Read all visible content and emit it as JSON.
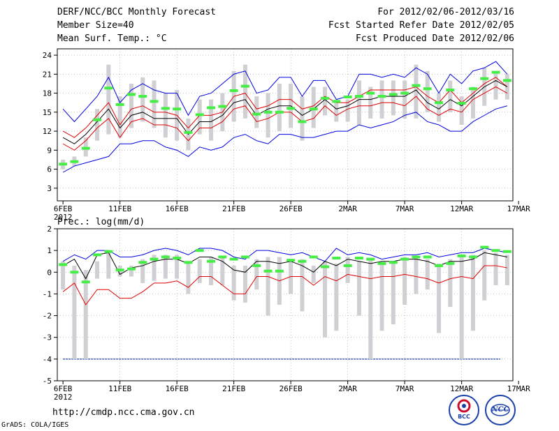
{
  "header": {
    "title": "DERF/NCC/BCC Monthly Forecast",
    "member_size": "Member Size=40",
    "variable": "Mean Surf. Temp.: °C",
    "period": "For 2012/02/06-2012/03/16",
    "fcst_started": "Fcst Started Refer Date 2012/02/05",
    "fcst_produced": "Fcst Produced Date 2012/02/06"
  },
  "footer": {
    "url": "http://cmdp.ncc.cma.gov.cn",
    "grads": "GrADS: COLA/IGES"
  },
  "logos": {
    "bcc_text": "BCC",
    "ncc_text": "NCC"
  },
  "colors": {
    "median": "#000000",
    "quartile": "#dd0000",
    "extreme": "#0000dd",
    "bar": "#d0d0d4",
    "obs": "#44ee44",
    "ref": "#1f3fa8"
  },
  "chart_data": [
    {
      "type": "line",
      "id": "temp",
      "title": "Mean Surf. Temp.: °C",
      "x_labels": [
        "6FEB",
        "11FEB",
        "16FEB",
        "21FEB",
        "26FEB",
        "2MAR",
        "7MAR",
        "12MAR",
        "17MAR"
      ],
      "x_sublabel": "2012",
      "ylim": [
        1,
        25
      ],
      "yticks": [
        3,
        6,
        9,
        12,
        15,
        18,
        21,
        24
      ],
      "xlim": [
        -0.5,
        39.5
      ],
      "series": [
        {
          "name": "max",
          "values": [
            15.5,
            13.5,
            15.5,
            17.5,
            20.5,
            16.5,
            18.5,
            19.5,
            18.5,
            18.0,
            18.0,
            14.5,
            17.5,
            18.0,
            19.5,
            21.0,
            21.5,
            18.0,
            18.5,
            20.5,
            20.5,
            17.5,
            20.0,
            20.0,
            17.0,
            17.5,
            21.0,
            21.0,
            20.5,
            21.0,
            20.5,
            22.0,
            21.0,
            18.0,
            21.0,
            19.5,
            21.5,
            22.0,
            23.0,
            21.0
          ]
        },
        {
          "name": "q3",
          "values": [
            12.0,
            11.0,
            12.5,
            14.5,
            16.5,
            13.0,
            15.5,
            16.0,
            15.0,
            15.0,
            14.5,
            12.5,
            14.5,
            14.5,
            15.0,
            17.5,
            18.0,
            15.5,
            16.0,
            17.0,
            17.0,
            15.5,
            16.0,
            17.5,
            16.5,
            16.5,
            17.5,
            18.5,
            18.5,
            18.5,
            18.5,
            19.0,
            17.5,
            16.5,
            18.5,
            16.5,
            18.0,
            19.5,
            20.5,
            19.0
          ]
        },
        {
          "name": "median",
          "values": [
            11.0,
            10.0,
            11.5,
            13.5,
            15.5,
            12.5,
            14.5,
            15.0,
            14.0,
            14.0,
            14.0,
            11.5,
            13.5,
            13.5,
            14.5,
            16.5,
            17.0,
            14.5,
            15.5,
            16.0,
            16.0,
            14.5,
            15.5,
            17.0,
            15.5,
            16.0,
            17.0,
            17.0,
            17.5,
            17.5,
            17.5,
            18.5,
            16.5,
            15.5,
            17.0,
            16.0,
            17.5,
            19.0,
            20.0,
            19.0
          ]
        },
        {
          "name": "q1",
          "values": [
            10.0,
            9.0,
            10.5,
            12.5,
            14.0,
            11.0,
            13.5,
            14.0,
            13.0,
            13.0,
            12.5,
            10.5,
            12.5,
            12.5,
            13.5,
            15.5,
            16.0,
            13.5,
            14.0,
            15.0,
            15.0,
            13.5,
            14.0,
            16.0,
            14.5,
            15.5,
            16.0,
            16.0,
            16.5,
            16.5,
            16.0,
            17.5,
            15.5,
            14.5,
            15.5,
            15.0,
            17.0,
            18.0,
            19.0,
            18.0
          ]
        },
        {
          "name": "min",
          "values": [
            5.5,
            6.5,
            7.0,
            7.5,
            8.0,
            10.0,
            10.0,
            10.5,
            10.5,
            9.5,
            9.0,
            8.0,
            9.5,
            9.0,
            9.5,
            11.0,
            11.5,
            10.5,
            10.0,
            11.5,
            11.5,
            11.0,
            11.0,
            11.5,
            12.0,
            12.0,
            13.0,
            12.5,
            13.0,
            13.5,
            14.5,
            15.0,
            13.5,
            13.0,
            12.0,
            12.0,
            13.5,
            14.5,
            15.5,
            16.0
          ]
        },
        {
          "name": "bar_top",
          "values": [
            7.5,
            8.0,
            11.0,
            15.5,
            22.5,
            17.5,
            19.5,
            20.5,
            20.0,
            18.0,
            18.5,
            14.0,
            17.0,
            17.0,
            18.0,
            21.5,
            22.5,
            17.5,
            18.0,
            19.5,
            19.5,
            17.5,
            19.0,
            19.0,
            16.5,
            17.0,
            20.0,
            19.0,
            20.0,
            20.0,
            20.0,
            22.5,
            21.5,
            18.0,
            20.0,
            17.5,
            19.0,
            22.0,
            21.5,
            21.0
          ]
        },
        {
          "name": "bar_bottom",
          "values": [
            6.0,
            6.5,
            8.0,
            10.5,
            11.5,
            11.0,
            12.5,
            13.5,
            12.5,
            11.0,
            10.5,
            9.0,
            11.5,
            10.5,
            12.0,
            13.5,
            14.0,
            12.5,
            11.0,
            12.0,
            12.5,
            10.5,
            12.5,
            14.5,
            13.5,
            13.5,
            13.0,
            14.0,
            14.0,
            14.5,
            14.0,
            14.0,
            15.0,
            13.5,
            15.0,
            13.0,
            14.0,
            16.0,
            17.0,
            17.0
          ]
        },
        {
          "name": "observed",
          "values": [
            6.8,
            7.2,
            9.3,
            13.8,
            18.8,
            16.2,
            17.8,
            17.5,
            16.7,
            15.6,
            15.5,
            11.8,
            14.6,
            15.7,
            15.9,
            18.4,
            19.1,
            14.7,
            15.0,
            15.0,
            15.6,
            13.5,
            15.5,
            17.2,
            16.7,
            17.4,
            17.5,
            18.0,
            17.5,
            17.8,
            18.0,
            19.2,
            18.7,
            16.5,
            18.5,
            16.4,
            18.7,
            20.3,
            21.3,
            20.0
          ]
        }
      ]
    },
    {
      "type": "line",
      "id": "prec",
      "title": "Prec.: log(mm/d)",
      "x_labels": [
        "6FEB",
        "11FEB",
        "16FEB",
        "21FEB",
        "26FEB",
        "2MAR",
        "7MAR",
        "12MAR",
        "17MAR"
      ],
      "x_sublabel": "2012",
      "ylim": [
        -5,
        2
      ],
      "yticks": [
        -5,
        -4,
        -3,
        -2,
        -1,
        0,
        1,
        2
      ],
      "xlim": [
        -0.5,
        39.5
      ],
      "reference_line": -4,
      "series": [
        {
          "name": "max",
          "values": [
            0.5,
            0.8,
            0.6,
            1.0,
            1.0,
            0.7,
            0.7,
            0.8,
            1.0,
            1.1,
            1.0,
            0.8,
            1.1,
            1.1,
            1.0,
            0.7,
            0.6,
            1.0,
            1.0,
            0.9,
            0.8,
            0.9,
            0.7,
            0.5,
            1.1,
            0.8,
            0.9,
            0.8,
            0.6,
            0.7,
            0.8,
            0.8,
            0.9,
            0.7,
            0.8,
            0.9,
            0.9,
            1.1,
            1.0,
            0.9
          ]
        },
        {
          "name": "median",
          "values": [
            0.3,
            0.6,
            -0.3,
            0.8,
            0.9,
            -0.1,
            0.2,
            0.3,
            0.5,
            0.6,
            0.6,
            0.4,
            0.7,
            0.7,
            0.5,
            0.1,
            0.0,
            0.5,
            0.5,
            0.4,
            0.5,
            0.3,
            0.0,
            0.5,
            0.3,
            0.6,
            0.5,
            0.4,
            0.5,
            0.5,
            0.6,
            0.6,
            0.5,
            0.3,
            0.5,
            0.5,
            0.6,
            0.9,
            0.8,
            0.7
          ]
        },
        {
          "name": "min",
          "values": [
            -0.9,
            -0.5,
            -1.5,
            -0.8,
            -0.8,
            -1.2,
            -1.2,
            -0.9,
            -0.5,
            -0.5,
            -0.4,
            -0.7,
            -0.2,
            -0.2,
            -0.6,
            -1.0,
            -1.0,
            -0.2,
            -0.2,
            -0.4,
            -0.2,
            -0.2,
            -0.6,
            -0.2,
            -0.4,
            -0.1,
            -0.2,
            -0.3,
            -0.2,
            -0.2,
            -0.1,
            -0.2,
            -0.3,
            -0.5,
            -0.3,
            -0.2,
            -0.3,
            0.3,
            0.3,
            0.2
          ]
        },
        {
          "name": "bar_top",
          "values": [
            0.5,
            0.3,
            0.1,
            0.5,
            1.0,
            0.3,
            0.3,
            0.6,
            0.8,
            0.8,
            0.8,
            0.5,
            0.6,
            0.7,
            0.7,
            0.3,
            0.3,
            0.6,
            0.7,
            0.7,
            0.6,
            0.6,
            0.3,
            0.5,
            0.4,
            0.7,
            0.5,
            0.6,
            0.4,
            0.5,
            0.7,
            0.7,
            0.6,
            0.4,
            0.6,
            0.7,
            0.8,
            1.0,
            0.9,
            0.8
          ]
        },
        {
          "name": "bar_bottom",
          "values": [
            -0.8,
            -4.0,
            -4.0,
            -0.3,
            -0.3,
            -0.2,
            -0.2,
            -0.5,
            -0.4,
            -0.3,
            -0.3,
            -1.0,
            -0.5,
            -0.6,
            -0.6,
            -1.3,
            -1.4,
            -0.8,
            -2.0,
            -1.5,
            -1.0,
            -1.8,
            -0.5,
            -3.0,
            -2.7,
            -0.5,
            -2.0,
            -4.0,
            -2.7,
            -2.4,
            -1.5,
            -1.0,
            -0.8,
            -2.8,
            -1.6,
            -4.0,
            -2.7,
            -1.3,
            -0.6,
            -0.6
          ]
        },
        {
          "name": "observed",
          "values": [
            0.35,
            0.0,
            -0.45,
            0.8,
            0.95,
            0.1,
            0.15,
            0.45,
            0.6,
            0.7,
            0.65,
            0.45,
            1.0,
            0.5,
            0.7,
            0.6,
            0.7,
            0.3,
            0.05,
            0.05,
            0.55,
            0.5,
            0.7,
            0.25,
            0.65,
            0.3,
            0.65,
            0.6,
            0.4,
            0.45,
            0.6,
            0.7,
            0.7,
            0.3,
            0.4,
            0.75,
            0.7,
            1.15,
            1.0,
            0.95
          ]
        }
      ]
    }
  ]
}
